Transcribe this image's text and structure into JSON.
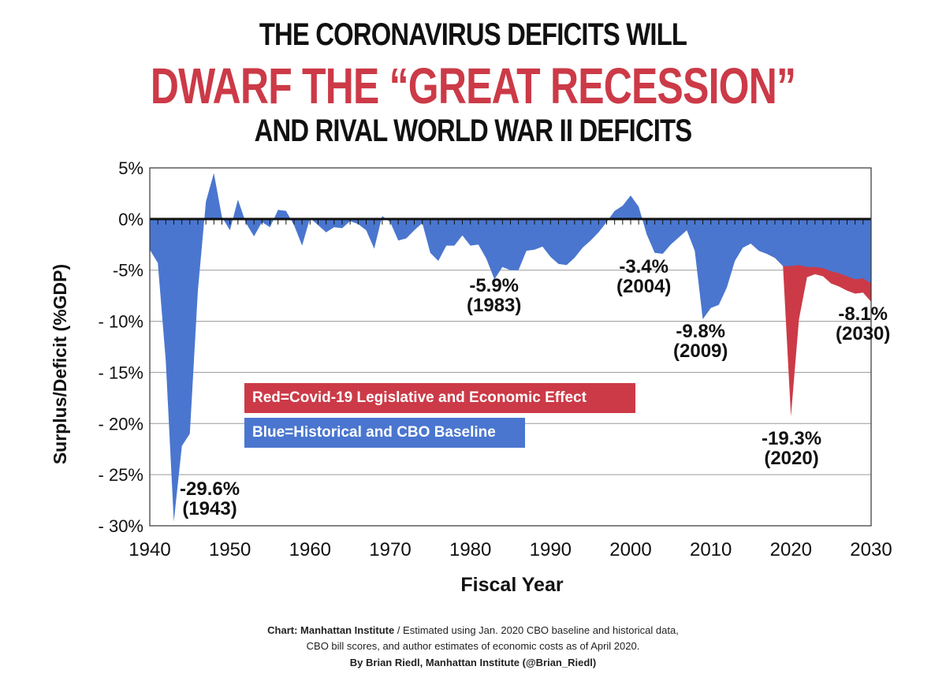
{
  "titles": {
    "line1": "THE CORONAVIRUS DEFICITS WILL",
    "line2": "DWARF THE “GREAT RECESSION”",
    "line3": "AND RIVAL WORLD WAR II DEFICITS"
  },
  "legend": {
    "red": "Red=Covid-19 Legislative and Economic Effect",
    "blue": "Blue=Historical and CBO Baseline"
  },
  "annotations": [
    {
      "value": "-29.6%",
      "year": "(1943)"
    },
    {
      "value": "-5.9%",
      "year": "(1983)"
    },
    {
      "value": "-3.4%",
      "year": "(2004)"
    },
    {
      "value": "-9.8%",
      "year": "(2009)"
    },
    {
      "value": "-19.3%",
      "year": "(2020)"
    },
    {
      "value": "-8.1%",
      "year": "(2030)"
    }
  ],
  "footer": {
    "line1_bold": "Chart: Manhattan Institute",
    "line1_rest": " /  Estimated using Jan. 2020 CBO baseline and historical data,",
    "line2": "CBO bill scores, and author estimates of economic costs as of April 2020.",
    "line3": "By Brian Riedl, Manhattan Institute (@Brian_Riedl)"
  },
  "colors": {
    "blue": "#4a76cf",
    "red": "#cc3a47"
  },
  "chart_data": {
    "type": "area",
    "title": "THE CORONAVIRUS DEFICITS WILL DWARF THE “GREAT RECESSION” AND RIVAL WORLD WAR II DEFICITS",
    "xlabel": "Fiscal Year",
    "ylabel": "Surplus/Deficit (%GDP)",
    "xlim": [
      1940,
      2030
    ],
    "ylim": [
      -30,
      5
    ],
    "xticks": [
      1940,
      1950,
      1960,
      1970,
      1980,
      1990,
      2000,
      2010,
      2020,
      2030
    ],
    "xtick_labels": [
      "1940",
      "1950",
      "1960",
      "1970",
      "1980",
      "1990",
      "2000",
      "2010",
      "2020",
      "2030"
    ],
    "yticks": [
      5,
      0,
      -5,
      -10,
      -15,
      -20,
      -25,
      -30
    ],
    "ytick_labels": [
      "5%",
      "0%",
      "-5%",
      "- 10%",
      "- 15%",
      "- 20%",
      "- 25%",
      "- 30%"
    ],
    "grid": true,
    "series": [
      {
        "name": "Historical and CBO Baseline",
        "color": "#4a76cf",
        "x": [
          1940,
          1941,
          1942,
          1943,
          1944,
          1945,
          1946,
          1947,
          1948,
          1949,
          1950,
          1951,
          1952,
          1953,
          1954,
          1955,
          1956,
          1957,
          1958,
          1959,
          1960,
          1961,
          1962,
          1963,
          1964,
          1965,
          1966,
          1967,
          1968,
          1969,
          1970,
          1971,
          1972,
          1973,
          1974,
          1975,
          1976,
          1977,
          1978,
          1979,
          1980,
          1981,
          1982,
          1983,
          1984,
          1985,
          1986,
          1987,
          1988,
          1989,
          1990,
          1991,
          1992,
          1993,
          1994,
          1995,
          1996,
          1997,
          1998,
          1999,
          2000,
          2001,
          2002,
          2003,
          2004,
          2005,
          2006,
          2007,
          2008,
          2009,
          2010,
          2011,
          2012,
          2013,
          2014,
          2015,
          2016,
          2017,
          2018,
          2019,
          2020,
          2021,
          2022,
          2023,
          2024,
          2025,
          2026,
          2027,
          2028,
          2029,
          2030
        ],
        "values": [
          -3.0,
          -4.3,
          -13.9,
          -29.6,
          -22.2,
          -21.0,
          -7.0,
          1.7,
          4.5,
          0.2,
          -1.1,
          1.9,
          -0.4,
          -1.7,
          -0.3,
          -0.8,
          0.9,
          0.8,
          -0.6,
          -2.6,
          0.1,
          -0.6,
          -1.3,
          -0.8,
          -0.9,
          -0.2,
          -0.5,
          -1.1,
          -2.9,
          0.3,
          -0.3,
          -2.1,
          -1.9,
          -1.1,
          -0.4,
          -3.3,
          -4.1,
          -2.6,
          -2.6,
          -1.6,
          -2.6,
          -2.5,
          -3.9,
          -5.9,
          -4.7,
          -5.0,
          -5.0,
          -3.1,
          -3.0,
          -2.7,
          -3.7,
          -4.4,
          -4.5,
          -3.8,
          -2.8,
          -2.1,
          -1.3,
          -0.3,
          0.8,
          1.3,
          2.3,
          1.2,
          -1.5,
          -3.3,
          -3.4,
          -2.5,
          -1.8,
          -1.1,
          -3.1,
          -9.8,
          -8.7,
          -8.4,
          -6.7,
          -4.1,
          -2.8,
          -2.4,
          -3.1,
          -3.4,
          -3.8,
          -4.6,
          -4.6,
          -4.5,
          -4.7,
          -4.7,
          -4.8,
          -5.1,
          -5.3,
          -5.6,
          -5.9,
          -5.8,
          -6.3
        ]
      },
      {
        "name": "Covid-19 Legislative and Economic Effect",
        "color": "#cc3a47",
        "x": [
          2015,
          2016,
          2017,
          2018,
          2019,
          2020,
          2021,
          2022,
          2023,
          2024,
          2025,
          2026,
          2027,
          2028,
          2029,
          2030
        ],
        "values": [
          -2.4,
          -3.1,
          -3.4,
          -3.8,
          -4.6,
          -19.3,
          -9.8,
          -5.7,
          -5.4,
          -5.6,
          -6.3,
          -6.6,
          -7.0,
          -7.3,
          -7.2,
          -8.1
        ]
      }
    ]
  }
}
